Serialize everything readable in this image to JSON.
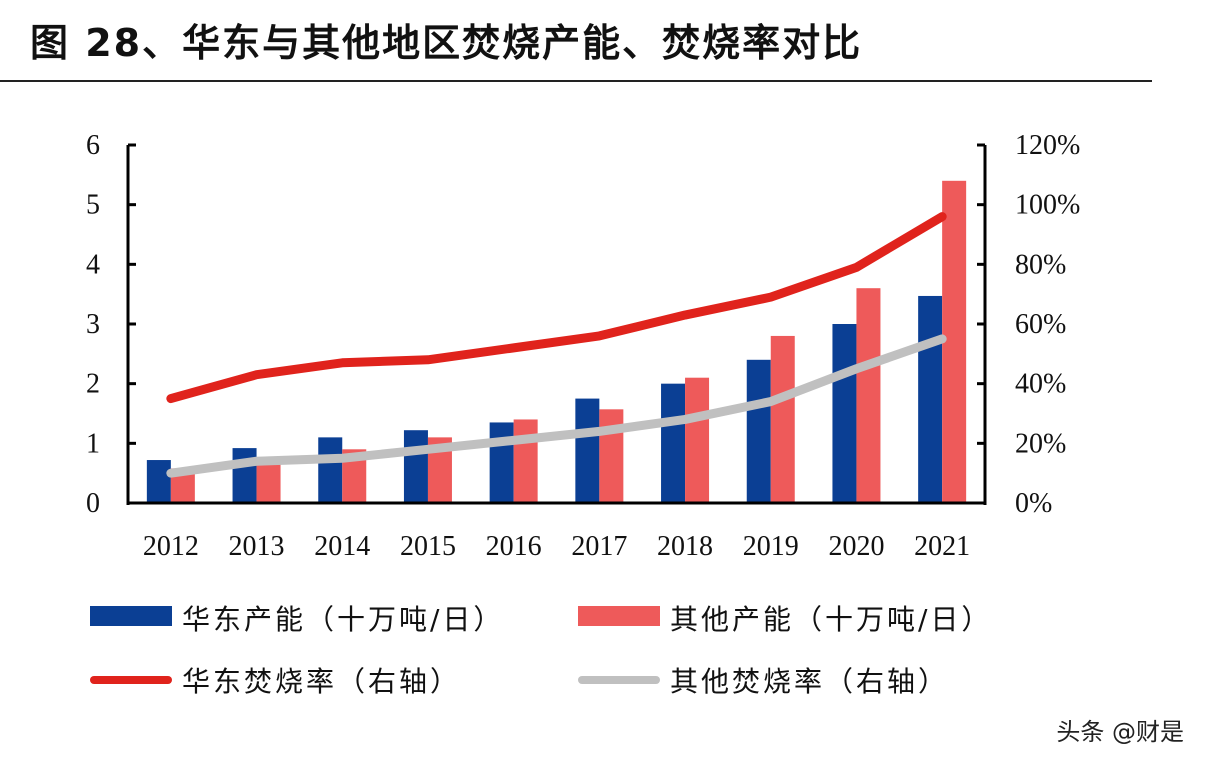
{
  "title": "图 28、华东与其他地区焚烧产能、焚烧率对比",
  "watermark": "头条 @财是",
  "chart_data": {
    "type": "bar",
    "categories": [
      "2012",
      "2013",
      "2014",
      "2015",
      "2016",
      "2017",
      "2018",
      "2019",
      "2020",
      "2021"
    ],
    "ylim": [
      0,
      6
    ],
    "yticks": [
      "0",
      "1",
      "2",
      "3",
      "4",
      "5",
      "6"
    ],
    "y2lim": [
      0,
      120
    ],
    "y2ticks": [
      "0%",
      "20%",
      "40%",
      "60%",
      "80%",
      "100%",
      "120%"
    ],
    "series": [
      {
        "name": "华东产能（十万吨/日）",
        "type": "bar",
        "axis": "left",
        "color": "#0b3f94",
        "values": [
          0.72,
          0.92,
          1.1,
          1.22,
          1.35,
          1.75,
          2.0,
          2.4,
          3.0,
          3.47
        ]
      },
      {
        "name": "其他产能（十万吨/日）",
        "type": "bar",
        "axis": "left",
        "color": "#ee5a5a",
        "values": [
          0.58,
          0.77,
          0.9,
          1.1,
          1.4,
          1.57,
          2.1,
          2.8,
          3.6,
          5.4
        ]
      },
      {
        "name": "华东焚烧率（右轴）",
        "type": "line",
        "axis": "right",
        "color": "#e0231c",
        "values": [
          35,
          43,
          47,
          48,
          52,
          56,
          63,
          69,
          79,
          96
        ]
      },
      {
        "name": "其他焚烧率（右轴）",
        "type": "line",
        "axis": "right",
        "color": "#c0c0c0",
        "values": [
          10,
          14,
          15,
          18,
          21,
          24,
          28,
          34,
          45,
          55
        ]
      }
    ],
    "legend": "bottom"
  }
}
